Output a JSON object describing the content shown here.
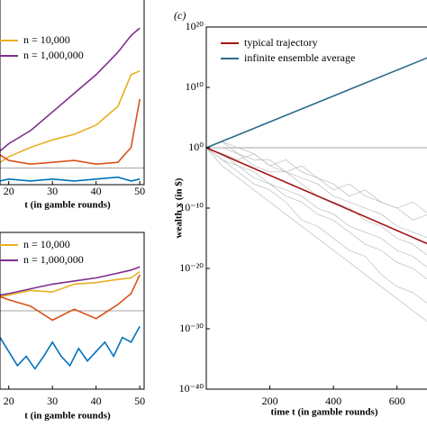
{
  "chart_data": [
    {
      "type": "line",
      "xlabel": "t (in gamble rounds)",
      "xlim": [
        18,
        51
      ],
      "ylim": [
        0,
        100
      ],
      "xticks": [
        20,
        30,
        40,
        50
      ],
      "hline": 9,
      "legend": "upper left",
      "x": [
        18,
        20,
        25,
        30,
        35,
        40,
        45,
        48,
        50
      ],
      "series": [
        {
          "name": "n = 10,000",
          "color": "#e8b020",
          "values": [
            12,
            15,
            20,
            24,
            27,
            32,
            42,
            59,
            61
          ]
        },
        {
          "name": "n = 1,000,000",
          "color": "#7e2f8e",
          "values": [
            18,
            22,
            29,
            39,
            49,
            59,
            71,
            80,
            84
          ]
        },
        {
          "color": "#d95319",
          "values": [
            16,
            13,
            11,
            12,
            13,
            11,
            12,
            20,
            46
          ]
        },
        {
          "color": "#0072bd",
          "values": [
            2,
            3,
            2,
            3,
            2,
            3,
            4,
            2,
            3
          ]
        }
      ]
    },
    {
      "type": "line",
      "xlabel": "t (in gamble rounds)",
      "xlim": [
        18,
        51
      ],
      "ylim": [
        0,
        100
      ],
      "xticks": [
        20,
        30,
        40,
        50
      ],
      "hline": 50,
      "legend": "upper left",
      "x": [
        18,
        20,
        25,
        30,
        35,
        40,
        45,
        48,
        50
      ],
      "series": [
        {
          "name": "n = 10,000",
          "color": "#e8b020",
          "values": [
            59,
            60,
            63,
            62,
            67,
            68,
            70,
            71,
            75
          ]
        },
        {
          "name": "n = 1,000,000",
          "color": "#7e2f8e",
          "values": [
            60,
            61,
            64,
            67,
            69,
            71,
            74,
            76,
            78
          ]
        },
        {
          "color": "#d95319",
          "values": [
            59,
            57,
            53,
            44,
            51,
            45,
            54,
            61,
            73
          ]
        },
        {
          "color": "#0072bd",
          "x": [
            18,
            20,
            22,
            24,
            26,
            28,
            30,
            32,
            34,
            36,
            38,
            40,
            42,
            44,
            46,
            48,
            50
          ],
          "values": [
            33,
            24,
            15,
            21,
            13,
            21,
            30,
            21,
            15,
            26,
            18,
            24,
            30,
            21,
            33,
            30,
            40
          ]
        }
      ]
    },
    {
      "type": "line",
      "title": "(c)",
      "xlabel": "time t (in gamble rounds)",
      "ylabel": "wealth x (in $)",
      "log_y": true,
      "xlim": [
        0,
        700
      ],
      "ylim": [
        1e-40,
        1e+20
      ],
      "xticks": [
        200,
        400,
        600
      ],
      "yticks": [
        {
          "value": 1e-40,
          "label": "10⁻⁴⁰"
        },
        {
          "value": 1e-30,
          "label": "10⁻³⁰"
        },
        {
          "value": 1e-20,
          "label": "10⁻²⁰"
        },
        {
          "value": 1e-10,
          "label": "10⁻¹⁰"
        },
        {
          "value": 1,
          "label": "10⁰"
        },
        {
          "value": 10000000000.0,
          "label": "10¹⁰"
        },
        {
          "value": 1e+20,
          "label": "10²⁰"
        }
      ],
      "hline": 1,
      "legend": "upper left",
      "trajectories": {
        "color": "#b4b4b4",
        "x": [
          0,
          50,
          100,
          150,
          200,
          250,
          300,
          350,
          400,
          450,
          500,
          550,
          600,
          650,
          700
        ],
        "values": [
          [
            1,
            10,
            1,
            0.1,
            0.001,
            0.01,
            0.0001,
            1e-05,
            1e-07,
            1e-06,
            1e-08,
            1e-09,
            1e-10,
            1e-12,
            1e-11
          ],
          [
            1,
            0.01,
            0.001,
            1e-05,
            1e-06,
            1e-08,
            1e-09,
            1e-11,
            1e-12,
            1e-14,
            1e-16,
            1e-17,
            1e-19,
            1e-20,
            1e-22
          ],
          [
            1,
            0.1,
            0.01,
            0.1,
            0.001,
            0.0001,
            0.001,
            1e-05,
            1e-06,
            1e-08,
            1e-07,
            1e-09,
            1e-10,
            1e-09,
            1e-11
          ],
          [
            1,
            0.01,
            0.0001,
            1e-06,
            1e-07,
            1e-09,
            1e-12,
            1e-13,
            1e-15,
            1e-17,
            1e-18,
            1e-21,
            1e-23,
            1e-24,
            1e-26
          ],
          [
            1,
            1,
            0.1,
            0.001,
            0.0001,
            0.0001,
            1e-06,
            1e-08,
            1e-09,
            1e-10,
            1e-12,
            1e-13,
            1e-15,
            1e-16,
            1e-18
          ],
          [
            1,
            0.1,
            0.001,
            0.0001,
            1e-06,
            1e-07,
            1e-08,
            1e-10,
            1e-11,
            1e-13,
            1e-14,
            1e-15,
            1e-17,
            1e-18,
            1e-20
          ],
          [
            1,
            0.001,
            1e-05,
            1e-07,
            1e-09,
            1e-11,
            1e-13,
            1e-15,
            1e-17,
            1e-19,
            1e-21,
            1e-23,
            1e-25,
            1e-27,
            1e-29
          ],
          [
            1,
            10,
            0.1,
            0.01,
            0.01,
            0.0001,
            1e-05,
            1e-06,
            1e-08,
            1e-09,
            1e-10,
            1e-11,
            1e-13,
            1e-14,
            1e-15
          ]
        ]
      },
      "x": [
        0,
        700
      ],
      "series": [
        {
          "name": "typical trajectory",
          "color": "#a31515",
          "values": [
            1,
            1e-16
          ]
        },
        {
          "name": "infinite ensemble average",
          "color": "#2a6b8a",
          "values": [
            1,
            1000000000000000.0
          ]
        }
      ]
    }
  ]
}
